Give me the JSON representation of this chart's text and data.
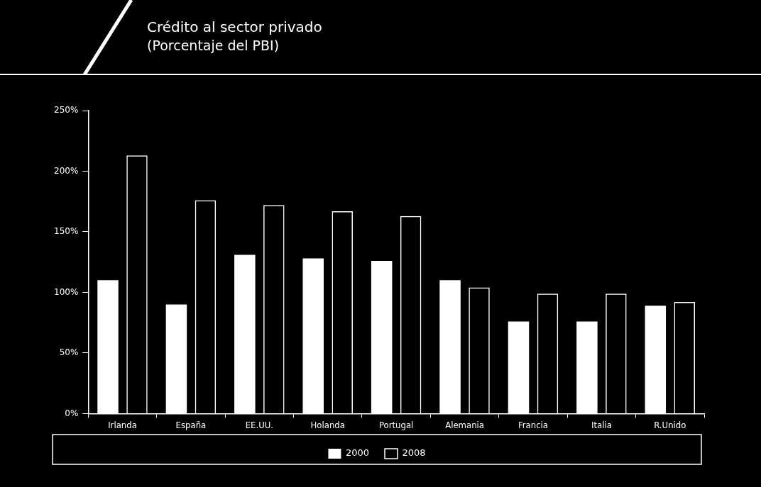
{
  "chart_data": {
    "type": "bar",
    "title": "Crédito al sector privado",
    "subtitle": "(Porcentaje del PBI)",
    "categories": [
      "Irlanda",
      "España",
      "EE.UU.",
      "Holanda",
      "Portugal",
      "Alemania",
      "Francia",
      "Italia",
      "R.Unido"
    ],
    "series": [
      {
        "name": "2000",
        "color": "#ffffff",
        "values": [
          110,
          90,
          131,
          128,
          126,
          110,
          76,
          76,
          89
        ]
      },
      {
        "name": "2008",
        "color": "#ffffff",
        "line_style": "dashed",
        "values": [
          213,
          176,
          172,
          167,
          163,
          104,
          99,
          99,
          92
        ]
      }
    ],
    "ylim": [
      0,
      250
    ],
    "yticks": [
      {
        "value": 0,
        "label": "0%"
      },
      {
        "value": 50,
        "label": "50%"
      },
      {
        "value": 100,
        "label": "100%"
      },
      {
        "value": 150,
        "label": "150%"
      },
      {
        "value": 200,
        "label": "200%"
      },
      {
        "value": 250,
        "label": "250%"
      }
    ],
    "grid": false,
    "legend": "bottom"
  }
}
